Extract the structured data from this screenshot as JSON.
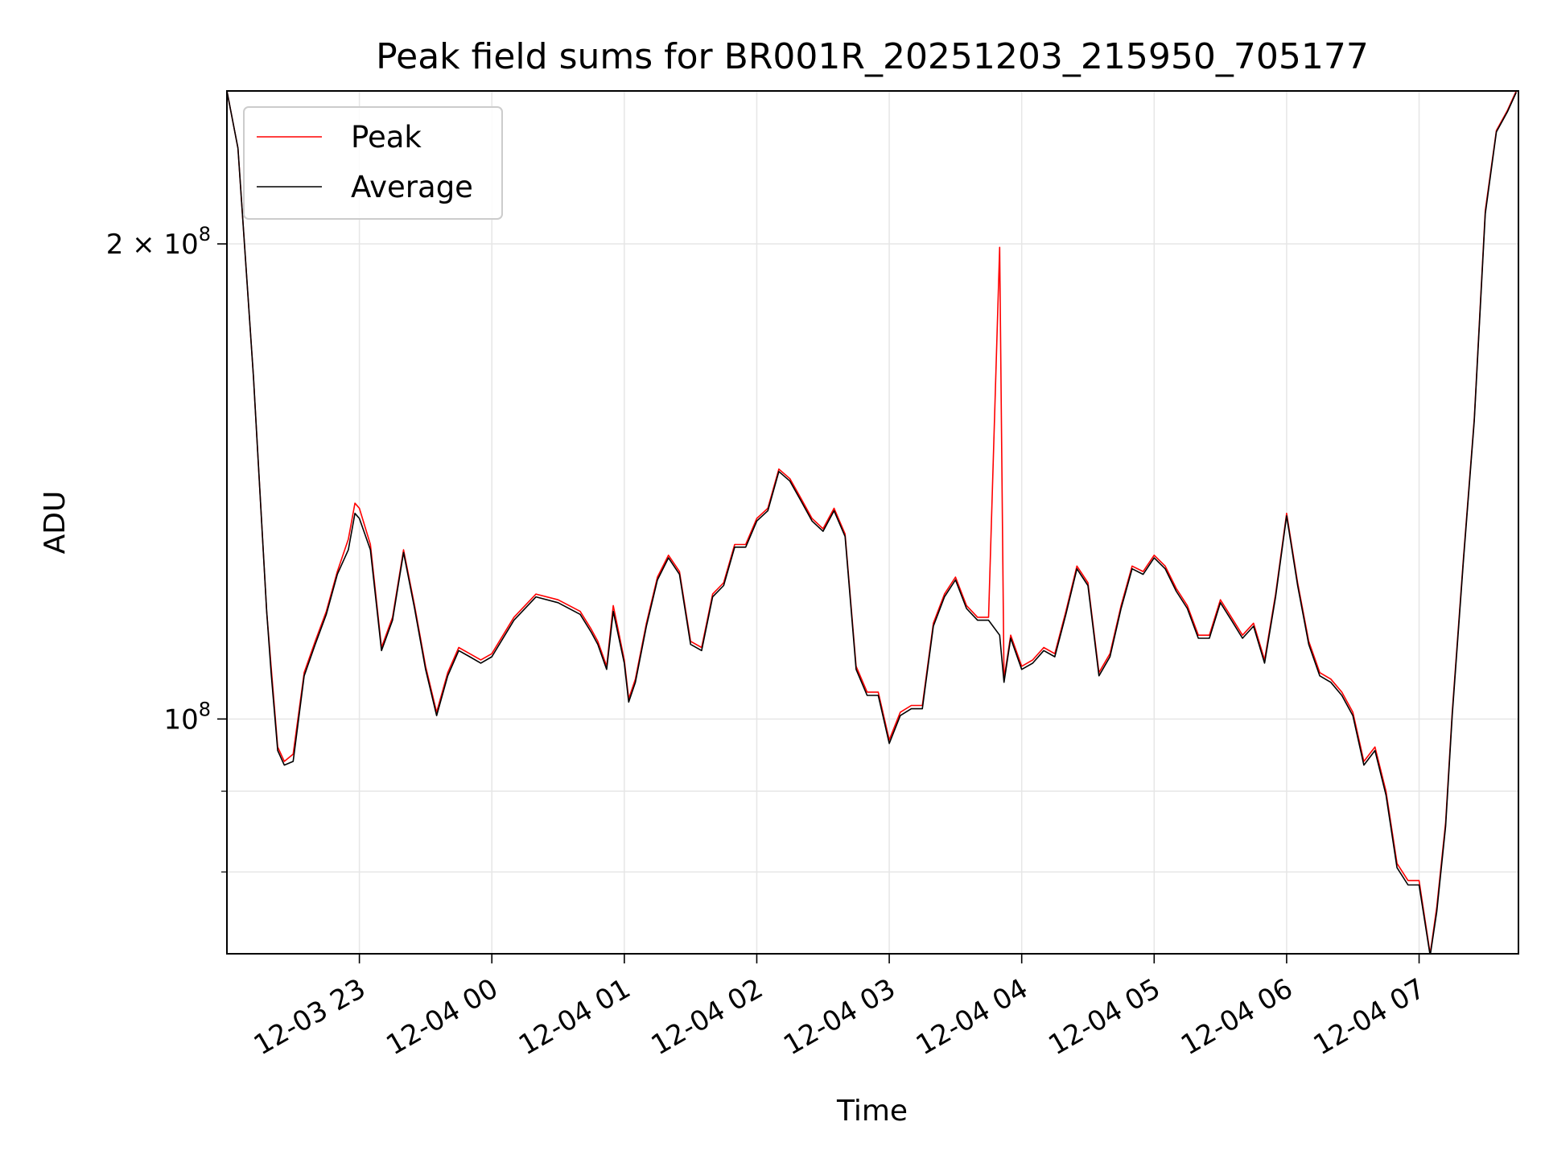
{
  "chart_data": {
    "type": "line",
    "title": "Peak field sums for BR001R_20251203_215950_705177",
    "xlabel": "Time",
    "ylabel": "ADU",
    "yscale": "log",
    "grid": true,
    "legend_placement": "top-left",
    "xlim": [
      "2025-12-03 22:00",
      "2025-12-04 07:45"
    ],
    "ylim": [
      71000000,
      250000000
    ],
    "x_ticks": [
      "12-03 23",
      "12-04 00",
      "12-04 01",
      "12-04 02",
      "12-04 03",
      "12-04 04",
      "12-04 05",
      "12-04 06",
      "12-04 07"
    ],
    "x_tick_times": [
      "2025-12-03 23:00",
      "2025-12-04 00:00",
      "2025-12-04 01:00",
      "2025-12-04 02:00",
      "2025-12-04 03:00",
      "2025-12-04 04:00",
      "2025-12-04 05:00",
      "2025-12-04 06:00",
      "2025-12-04 07:00"
    ],
    "y_major_ticks": [
      {
        "value": 100000000,
        "base": "10",
        "exp": "8",
        "mant": ""
      },
      {
        "value": 200000000,
        "base": "10",
        "exp": "8",
        "mant": "2 × "
      }
    ],
    "y_minor_ticks": [
      60000000,
      70000000,
      80000000,
      90000000,
      300000000
    ],
    "x": [
      "2025-12-03 22:00",
      "2025-12-03 22:05",
      "2025-12-03 22:12",
      "2025-12-03 22:18",
      "2025-12-03 22:20",
      "2025-12-03 22:23",
      "2025-12-03 22:26",
      "2025-12-03 22:30",
      "2025-12-03 22:35",
      "2025-12-03 22:40",
      "2025-12-03 22:45",
      "2025-12-03 22:50",
      "2025-12-03 22:55",
      "2025-12-03 22:58",
      "2025-12-03 23:00",
      "2025-12-03 23:05",
      "2025-12-03 23:10",
      "2025-12-03 23:15",
      "2025-12-03 23:20",
      "2025-12-03 23:25",
      "2025-12-03 23:30",
      "2025-12-03 23:35",
      "2025-12-03 23:40",
      "2025-12-03 23:45",
      "2025-12-03 23:50",
      "2025-12-03 23:55",
      "2025-12-04 00:00",
      "2025-12-04 00:10",
      "2025-12-04 00:20",
      "2025-12-04 00:30",
      "2025-12-04 00:40",
      "2025-12-04 00:45",
      "2025-12-04 00:48",
      "2025-12-04 00:52",
      "2025-12-04 00:55",
      "2025-12-04 01:00",
      "2025-12-04 01:02",
      "2025-12-04 01:05",
      "2025-12-04 01:10",
      "2025-12-04 01:15",
      "2025-12-04 01:20",
      "2025-12-04 01:25",
      "2025-12-04 01:30",
      "2025-12-04 01:35",
      "2025-12-04 01:40",
      "2025-12-04 01:45",
      "2025-12-04 01:50",
      "2025-12-04 01:55",
      "2025-12-04 02:00",
      "2025-12-04 02:05",
      "2025-12-04 02:10",
      "2025-12-04 02:15",
      "2025-12-04 02:20",
      "2025-12-04 02:25",
      "2025-12-04 02:30",
      "2025-12-04 02:35",
      "2025-12-04 02:40",
      "2025-12-04 02:45",
      "2025-12-04 02:50",
      "2025-12-04 02:55",
      "2025-12-04 03:00",
      "2025-12-04 03:05",
      "2025-12-04 03:10",
      "2025-12-04 03:15",
      "2025-12-04 03:20",
      "2025-12-04 03:25",
      "2025-12-04 03:30",
      "2025-12-04 03:35",
      "2025-12-04 03:40",
      "2025-12-04 03:45",
      "2025-12-04 03:50",
      "2025-12-04 03:52",
      "2025-12-04 03:55",
      "2025-12-04 04:00",
      "2025-12-04 04:05",
      "2025-12-04 04:10",
      "2025-12-04 04:15",
      "2025-12-04 04:20",
      "2025-12-04 04:25",
      "2025-12-04 04:30",
      "2025-12-04 04:35",
      "2025-12-04 04:40",
      "2025-12-04 04:45",
      "2025-12-04 04:50",
      "2025-12-04 04:55",
      "2025-12-04 05:00",
      "2025-12-04 05:05",
      "2025-12-04 05:10",
      "2025-12-04 05:15",
      "2025-12-04 05:20",
      "2025-12-04 05:25",
      "2025-12-04 05:30",
      "2025-12-04 05:35",
      "2025-12-04 05:40",
      "2025-12-04 05:45",
      "2025-12-04 05:50",
      "2025-12-04 05:55",
      "2025-12-04 06:00",
      "2025-12-04 06:05",
      "2025-12-04 06:10",
      "2025-12-04 06:15",
      "2025-12-04 06:20",
      "2025-12-04 06:25",
      "2025-12-04 06:30",
      "2025-12-04 06:35",
      "2025-12-04 06:40",
      "2025-12-04 06:45",
      "2025-12-04 06:50",
      "2025-12-04 06:55",
      "2025-12-04 07:00",
      "2025-12-04 07:05",
      "2025-12-04 07:08",
      "2025-12-04 07:12",
      "2025-12-04 07:15",
      "2025-12-04 07:20",
      "2025-12-04 07:25",
      "2025-12-04 07:30",
      "2025-12-04 07:35",
      "2025-12-04 07:40",
      "2025-12-04 07:44"
    ],
    "series": [
      {
        "name": "Peak",
        "color": "#ff0000",
        "values": [
          250000000,
          230000000,
          165000000,
          117000000,
          108000000,
          96000000,
          94000000,
          95000000,
          107000000,
          112000000,
          117000000,
          124000000,
          130000000,
          137000000,
          136000000,
          129000000,
          111000000,
          116000000,
          128000000,
          118000000,
          108000000,
          101000000,
          107000000,
          111000000,
          110000000,
          109000000,
          110000000,
          116000000,
          120000000,
          119000000,
          117000000,
          114000000,
          112000000,
          108000000,
          118000000,
          109000000,
          103000000,
          106000000,
          115000000,
          123000000,
          127000000,
          124000000,
          112000000,
          111000000,
          120000000,
          122000000,
          129000000,
          129000000,
          134000000,
          136000000,
          144000000,
          142000000,
          138000000,
          134000000,
          132000000,
          136000000,
          131000000,
          108000000,
          104000000,
          104000000,
          97000000,
          101000000,
          102000000,
          102000000,
          115000000,
          120000000,
          123000000,
          118000000,
          116000000,
          116000000,
          199000000,
          106000000,
          113000000,
          108000000,
          109000000,
          111000000,
          110000000,
          117000000,
          125000000,
          122000000,
          107000000,
          110000000,
          118000000,
          125000000,
          124000000,
          127000000,
          125000000,
          121000000,
          118000000,
          113000000,
          113000000,
          119000000,
          116000000,
          113000000,
          115000000,
          109000000,
          120000000,
          135000000,
          122000000,
          112000000,
          107000000,
          106000000,
          104000000,
          101000000,
          94000000,
          96000000,
          90000000,
          81000000,
          79000000,
          79000000,
          71000000,
          76000000,
          86000000,
          101000000,
          126000000,
          155000000,
          210000000,
          236000000,
          243000000,
          250000000
        ]
      },
      {
        "name": "Average",
        "color": "#000000",
        "values": [
          250000000,
          230000000,
          165000000,
          117000000,
          107000000,
          95500000,
          93500000,
          94000000,
          106500000,
          111500000,
          116500000,
          123500000,
          128000000,
          135000000,
          134000000,
          128000000,
          110500000,
          115500000,
          127500000,
          117500000,
          107500000,
          100500000,
          106500000,
          110500000,
          109500000,
          108500000,
          109500000,
          115500000,
          119500000,
          118500000,
          116500000,
          113500000,
          111500000,
          107500000,
          117000000,
          108500000,
          102500000,
          105500000,
          114500000,
          122500000,
          126500000,
          123500000,
          111500000,
          110500000,
          119500000,
          121500000,
          128500000,
          128500000,
          133500000,
          135500000,
          143500000,
          141500000,
          137500000,
          133500000,
          131500000,
          135500000,
          130500000,
          107500000,
          103500000,
          103500000,
          96500000,
          100500000,
          101500000,
          101500000,
          114500000,
          119500000,
          122500000,
          117500000,
          115500000,
          115500000,
          113000000,
          105500000,
          112500000,
          107500000,
          108500000,
          110500000,
          109500000,
          116500000,
          124500000,
          121500000,
          106500000,
          109500000,
          117500000,
          124500000,
          123500000,
          126500000,
          124500000,
          120500000,
          117500000,
          112500000,
          112500000,
          118500000,
          115500000,
          112500000,
          114500000,
          108500000,
          119500000,
          134500000,
          121500000,
          111500000,
          106500000,
          105500000,
          103500000,
          100500000,
          93500000,
          95500000,
          89500000,
          80500000,
          78500000,
          78500000,
          70800000,
          75500000,
          85500000,
          100500000,
          125500000,
          154500000,
          209000000,
          235500000,
          242500000,
          249500000
        ]
      }
    ]
  }
}
